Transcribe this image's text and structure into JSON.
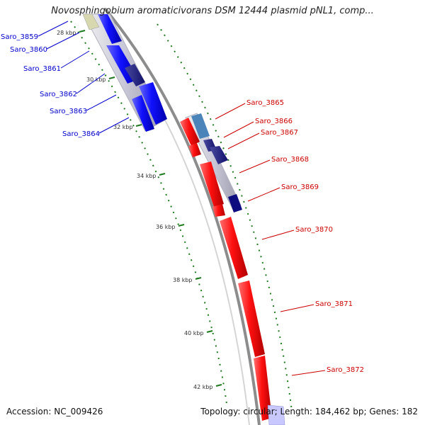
{
  "title": "Novosphingobium aromaticivorans DSM 12444 plasmid pNL1, comp...",
  "accession_text": "Accession: NC_009426",
  "summary_text": "Topology: circular; Length: 184,462 bp; Genes: 182",
  "colors": {
    "forward_gene": "#1a1aff",
    "reverse_gene": "#ff1a1a",
    "backbone": "#8c8c8c",
    "gc_dots": "#1f7a1f",
    "left_label": "#0000cc",
    "right_label": "#cc0000"
  },
  "scale_ticks": [
    "28 kbp",
    "30 kbp",
    "32 kbp",
    "34 kbp",
    "36 kbp",
    "38 kbp",
    "40 kbp",
    "42 kbp"
  ],
  "left_genes": [
    "Saro_3859",
    "Saro_3860",
    "Saro_3861",
    "Saro_3862",
    "Saro_3863",
    "Saro_3864"
  ],
  "right_genes": [
    "Saro_3865",
    "Saro_3866",
    "Saro_3867",
    "Saro_3868",
    "Saro_3869",
    "Saro_3870",
    "Saro_3871",
    "Saro_3872"
  ]
}
